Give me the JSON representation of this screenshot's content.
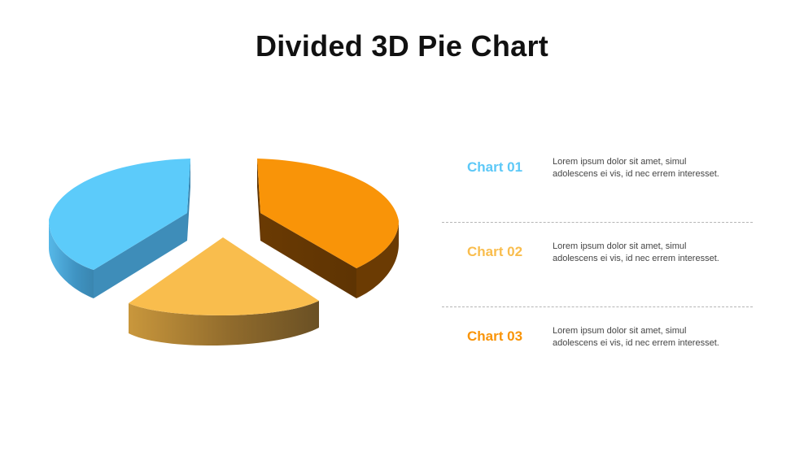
{
  "title": "Divided 3D Pie Chart",
  "chart_data": {
    "type": "pie",
    "style": "3d-exploded",
    "categories": [
      "Chart 01",
      "Chart 02",
      "Chart 03"
    ],
    "values": [
      40,
      25,
      35
    ],
    "colors": {
      "chart01": {
        "top": "#5ccbfa",
        "side": "#3e8db9"
      },
      "chart02": {
        "top": "#f9bd4d",
        "side": "#a47a31"
      },
      "chart03": {
        "top": "#f99408",
        "side": "#6b3b03"
      }
    }
  },
  "legend": [
    {
      "label": "Chart 01",
      "color": "#5cc8f7",
      "text_line1": "Lorem  ipsum  dolor  sit amet,  simul",
      "text_line2": "adolescens ei vis, id nec errem  interesset."
    },
    {
      "label": "Chart 02",
      "color": "#f9bd4d",
      "text_line1": "Lorem  ipsum  dolor  sit amet,  simul",
      "text_line2": "adolescens ei vis, id nec errem  interesset."
    },
    {
      "label": "Chart 03",
      "color": "#f99408",
      "text_line1": "Lorem  ipsum  dolor  sit amet,  simul",
      "text_line2": "adolescens ei vis, id nec errem  interesset."
    }
  ]
}
